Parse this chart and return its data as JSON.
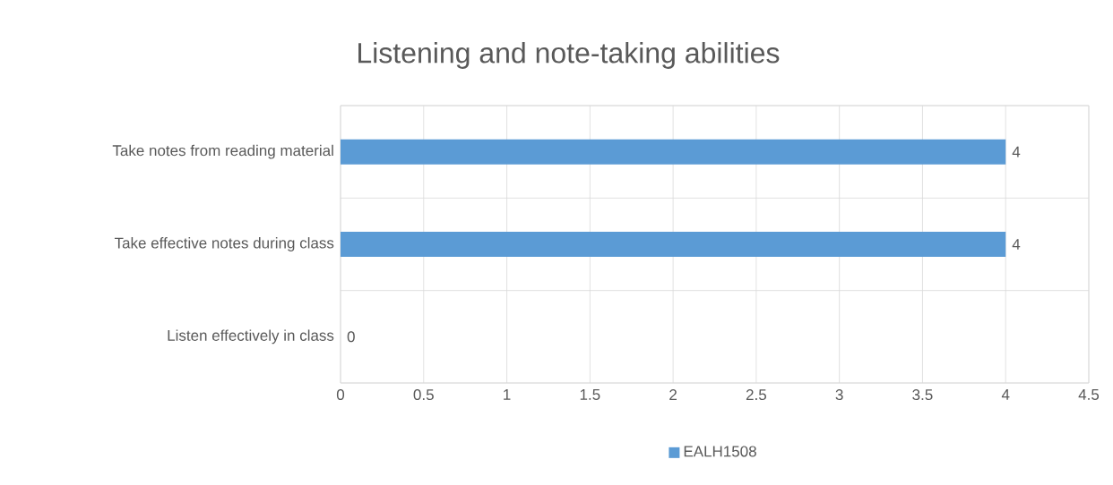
{
  "chart_data": {
    "type": "bar",
    "orientation": "horizontal",
    "title": "Listening and note-taking abilities",
    "categories": [
      "Take notes from reading material",
      "Take effective notes during class",
      "Listen effectively in class"
    ],
    "series": [
      {
        "name": "EALH1508",
        "color": "#5b9bd5",
        "values": [
          4,
          4,
          0
        ]
      }
    ],
    "xlim": [
      0,
      4.5
    ],
    "xticks": [
      0,
      0.5,
      1,
      1.5,
      2,
      2.5,
      3,
      3.5,
      4,
      4.5
    ],
    "grid": true,
    "legend": "bottom",
    "data_labels": true
  }
}
